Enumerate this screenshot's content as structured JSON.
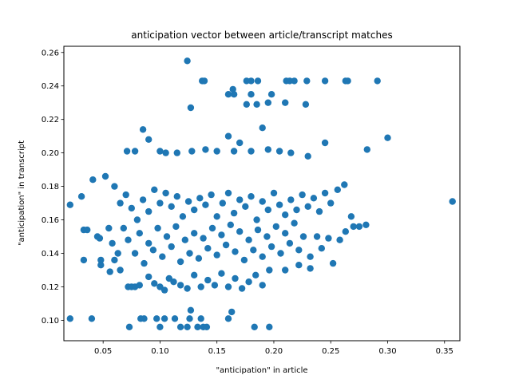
{
  "chart_data": {
    "type": "scatter",
    "title": "anticipation vector between article/transcript matches",
    "xlabel": "\"anticipation\" in article",
    "ylabel": "\"anticipation\" in transcript",
    "xlim": [
      0.0155,
      0.3635
    ],
    "ylim": [
      0.0878,
      0.2637
    ],
    "xticks": [
      0.05,
      0.1,
      0.15,
      0.2,
      0.25,
      0.3,
      0.35
    ],
    "xtick_labels": [
      "0.05",
      "0.10",
      "0.15",
      "0.20",
      "0.25",
      "0.30",
      "0.35"
    ],
    "yticks": [
      0.1,
      0.12,
      0.14,
      0.16,
      0.18,
      0.2,
      0.22,
      0.24,
      0.26
    ],
    "ytick_labels": [
      "0.10",
      "0.12",
      "0.14",
      "0.16",
      "0.18",
      "0.20",
      "0.22",
      "0.24",
      "0.26"
    ],
    "grid": false,
    "marker_color": "#1f77b4",
    "points": [
      [
        0.124,
        0.255
      ],
      [
        0.137,
        0.243
      ],
      [
        0.139,
        0.243
      ],
      [
        0.176,
        0.243
      ],
      [
        0.18,
        0.243
      ],
      [
        0.186,
        0.243
      ],
      [
        0.211,
        0.243
      ],
      [
        0.214,
        0.243
      ],
      [
        0.218,
        0.243
      ],
      [
        0.229,
        0.243
      ],
      [
        0.245,
        0.243
      ],
      [
        0.263,
        0.243
      ],
      [
        0.265,
        0.243
      ],
      [
        0.291,
        0.243
      ],
      [
        0.164,
        0.238
      ],
      [
        0.16,
        0.235
      ],
      [
        0.165,
        0.235
      ],
      [
        0.18,
        0.235
      ],
      [
        0.198,
        0.235
      ],
      [
        0.185,
        0.229
      ],
      [
        0.195,
        0.23
      ],
      [
        0.176,
        0.229
      ],
      [
        0.127,
        0.227
      ],
      [
        0.21,
        0.23
      ],
      [
        0.228,
        0.229
      ],
      [
        0.19,
        0.215
      ],
      [
        0.16,
        0.21
      ],
      [
        0.17,
        0.206
      ],
      [
        0.085,
        0.214
      ],
      [
        0.09,
        0.208
      ],
      [
        0.245,
        0.206
      ],
      [
        0.282,
        0.202
      ],
      [
        0.3,
        0.209
      ],
      [
        0.071,
        0.201
      ],
      [
        0.078,
        0.201
      ],
      [
        0.1,
        0.201
      ],
      [
        0.105,
        0.2
      ],
      [
        0.115,
        0.2
      ],
      [
        0.128,
        0.201
      ],
      [
        0.14,
        0.202
      ],
      [
        0.15,
        0.201
      ],
      [
        0.165,
        0.201
      ],
      [
        0.18,
        0.201
      ],
      [
        0.195,
        0.202
      ],
      [
        0.205,
        0.201
      ],
      [
        0.215,
        0.2
      ],
      [
        0.23,
        0.198
      ],
      [
        0.041,
        0.184
      ],
      [
        0.052,
        0.186
      ],
      [
        0.06,
        0.18
      ],
      [
        0.065,
        0.17
      ],
      [
        0.07,
        0.175
      ],
      [
        0.075,
        0.167
      ],
      [
        0.08,
        0.16
      ],
      [
        0.085,
        0.172
      ],
      [
        0.09,
        0.165
      ],
      [
        0.095,
        0.178
      ],
      [
        0.1,
        0.17
      ],
      [
        0.105,
        0.176
      ],
      [
        0.11,
        0.168
      ],
      [
        0.115,
        0.174
      ],
      [
        0.12,
        0.162
      ],
      [
        0.125,
        0.171
      ],
      [
        0.13,
        0.166
      ],
      [
        0.135,
        0.173
      ],
      [
        0.14,
        0.169
      ],
      [
        0.145,
        0.175
      ],
      [
        0.15,
        0.162
      ],
      [
        0.155,
        0.17
      ],
      [
        0.16,
        0.176
      ],
      [
        0.165,
        0.164
      ],
      [
        0.17,
        0.172
      ],
      [
        0.175,
        0.168
      ],
      [
        0.18,
        0.174
      ],
      [
        0.185,
        0.16
      ],
      [
        0.19,
        0.171
      ],
      [
        0.195,
        0.166
      ],
      [
        0.2,
        0.176
      ],
      [
        0.205,
        0.169
      ],
      [
        0.21,
        0.163
      ],
      [
        0.215,
        0.172
      ],
      [
        0.22,
        0.166
      ],
      [
        0.225,
        0.175
      ],
      [
        0.23,
        0.168
      ],
      [
        0.235,
        0.173
      ],
      [
        0.24,
        0.165
      ],
      [
        0.245,
        0.176
      ],
      [
        0.25,
        0.17
      ],
      [
        0.256,
        0.178
      ],
      [
        0.262,
        0.181
      ],
      [
        0.268,
        0.162
      ],
      [
        0.275,
        0.156
      ],
      [
        0.357,
        0.171
      ],
      [
        0.021,
        0.169
      ],
      [
        0.031,
        0.174
      ],
      [
        0.033,
        0.154
      ],
      [
        0.036,
        0.154
      ],
      [
        0.033,
        0.136
      ],
      [
        0.045,
        0.15
      ],
      [
        0.047,
        0.149
      ],
      [
        0.048,
        0.136
      ],
      [
        0.048,
        0.133
      ],
      [
        0.055,
        0.155
      ],
      [
        0.058,
        0.146
      ],
      [
        0.06,
        0.136
      ],
      [
        0.063,
        0.14
      ],
      [
        0.068,
        0.155
      ],
      [
        0.072,
        0.148
      ],
      [
        0.078,
        0.14
      ],
      [
        0.082,
        0.152
      ],
      [
        0.086,
        0.134
      ],
      [
        0.09,
        0.146
      ],
      [
        0.094,
        0.142
      ],
      [
        0.098,
        0.155
      ],
      [
        0.102,
        0.138
      ],
      [
        0.106,
        0.15
      ],
      [
        0.11,
        0.144
      ],
      [
        0.114,
        0.156
      ],
      [
        0.118,
        0.135
      ],
      [
        0.122,
        0.148
      ],
      [
        0.126,
        0.14
      ],
      [
        0.13,
        0.152
      ],
      [
        0.134,
        0.137
      ],
      [
        0.138,
        0.149
      ],
      [
        0.142,
        0.143
      ],
      [
        0.146,
        0.155
      ],
      [
        0.15,
        0.139
      ],
      [
        0.154,
        0.151
      ],
      [
        0.158,
        0.145
      ],
      [
        0.162,
        0.157
      ],
      [
        0.166,
        0.141
      ],
      [
        0.17,
        0.153
      ],
      [
        0.174,
        0.136
      ],
      [
        0.178,
        0.148
      ],
      [
        0.182,
        0.142
      ],
      [
        0.186,
        0.154
      ],
      [
        0.19,
        0.138
      ],
      [
        0.194,
        0.15
      ],
      [
        0.198,
        0.144
      ],
      [
        0.202,
        0.156
      ],
      [
        0.206,
        0.14
      ],
      [
        0.21,
        0.152
      ],
      [
        0.214,
        0.146
      ],
      [
        0.218,
        0.158
      ],
      [
        0.222,
        0.142
      ],
      [
        0.226,
        0.15
      ],
      [
        0.232,
        0.138
      ],
      [
        0.238,
        0.15
      ],
      [
        0.242,
        0.143
      ],
      [
        0.248,
        0.149
      ],
      [
        0.252,
        0.134
      ],
      [
        0.258,
        0.148
      ],
      [
        0.263,
        0.153
      ],
      [
        0.27,
        0.156
      ],
      [
        0.281,
        0.157
      ],
      [
        0.056,
        0.129
      ],
      [
        0.065,
        0.13
      ],
      [
        0.072,
        0.12
      ],
      [
        0.075,
        0.12
      ],
      [
        0.078,
        0.12
      ],
      [
        0.082,
        0.121
      ],
      [
        0.09,
        0.126
      ],
      [
        0.095,
        0.122
      ],
      [
        0.1,
        0.12
      ],
      [
        0.104,
        0.118
      ],
      [
        0.108,
        0.125
      ],
      [
        0.112,
        0.123
      ],
      [
        0.118,
        0.121
      ],
      [
        0.124,
        0.119
      ],
      [
        0.13,
        0.127
      ],
      [
        0.136,
        0.12
      ],
      [
        0.142,
        0.124
      ],
      [
        0.148,
        0.121
      ],
      [
        0.154,
        0.128
      ],
      [
        0.16,
        0.12
      ],
      [
        0.166,
        0.125
      ],
      [
        0.172,
        0.119
      ],
      [
        0.178,
        0.123
      ],
      [
        0.184,
        0.127
      ],
      [
        0.19,
        0.121
      ],
      [
        0.196,
        0.13
      ],
      [
        0.21,
        0.13
      ],
      [
        0.222,
        0.133
      ],
      [
        0.232,
        0.131
      ],
      [
        0.04,
        0.101
      ],
      [
        0.073,
        0.096
      ],
      [
        0.083,
        0.101
      ],
      [
        0.086,
        0.101
      ],
      [
        0.097,
        0.101
      ],
      [
        0.1,
        0.096
      ],
      [
        0.104,
        0.101
      ],
      [
        0.113,
        0.101
      ],
      [
        0.118,
        0.096
      ],
      [
        0.124,
        0.096
      ],
      [
        0.126,
        0.101
      ],
      [
        0.127,
        0.106
      ],
      [
        0.133,
        0.096
      ],
      [
        0.136,
        0.101
      ],
      [
        0.138,
        0.096
      ],
      [
        0.141,
        0.096
      ],
      [
        0.16,
        0.101
      ],
      [
        0.163,
        0.105
      ],
      [
        0.183,
        0.096
      ],
      [
        0.196,
        0.096
      ],
      [
        0.021,
        0.101
      ]
    ]
  }
}
